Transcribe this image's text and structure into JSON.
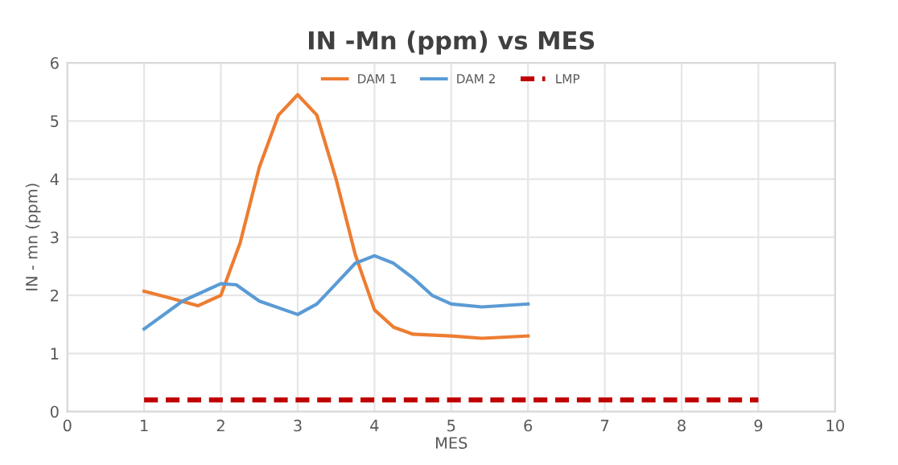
{
  "chart_data": {
    "type": "line",
    "title": "IN -Mn (ppm) vs MES",
    "xlabel": "MES",
    "ylabel": "IN - mn (ppm)",
    "series": [
      {
        "name": "DAM 1",
        "color": "#ed7d31",
        "x": [
          1,
          1.35,
          1.7,
          2,
          2.25,
          2.5,
          2.75,
          3,
          3.25,
          3.5,
          3.75,
          4,
          4.25,
          4.5,
          5,
          5.4,
          6
        ],
        "values": [
          2.07,
          1.95,
          1.82,
          2.0,
          2.9,
          4.2,
          5.1,
          5.45,
          5.1,
          4.0,
          2.7,
          1.75,
          1.45,
          1.33,
          1.3,
          1.26,
          1.3
        ],
        "line_style": "solid"
      },
      {
        "name": "DAM 2",
        "color": "#5b9bd5",
        "x": [
          1,
          1.5,
          2,
          2.2,
          2.5,
          3,
          3.25,
          3.5,
          3.75,
          4,
          4.25,
          4.5,
          4.75,
          5,
          5.4,
          6
        ],
        "values": [
          1.42,
          1.9,
          2.2,
          2.18,
          1.9,
          1.67,
          1.85,
          2.2,
          2.55,
          2.68,
          2.55,
          2.3,
          2.0,
          1.85,
          1.8,
          1.85
        ],
        "line_style": "solid"
      },
      {
        "name": "LMP",
        "color": "#c00000",
        "x": [
          1,
          9
        ],
        "values": [
          0.2,
          0.2
        ],
        "line_style": "dashed"
      }
    ],
    "xlim": [
      0,
      10
    ],
    "xticks": [
      0,
      1,
      2,
      3,
      4,
      5,
      6,
      7,
      8,
      9,
      10
    ],
    "ylim": [
      0,
      6
    ],
    "yticks": [
      0,
      1,
      2,
      3,
      4,
      5,
      6
    ],
    "grid": true,
    "legend": "top"
  }
}
